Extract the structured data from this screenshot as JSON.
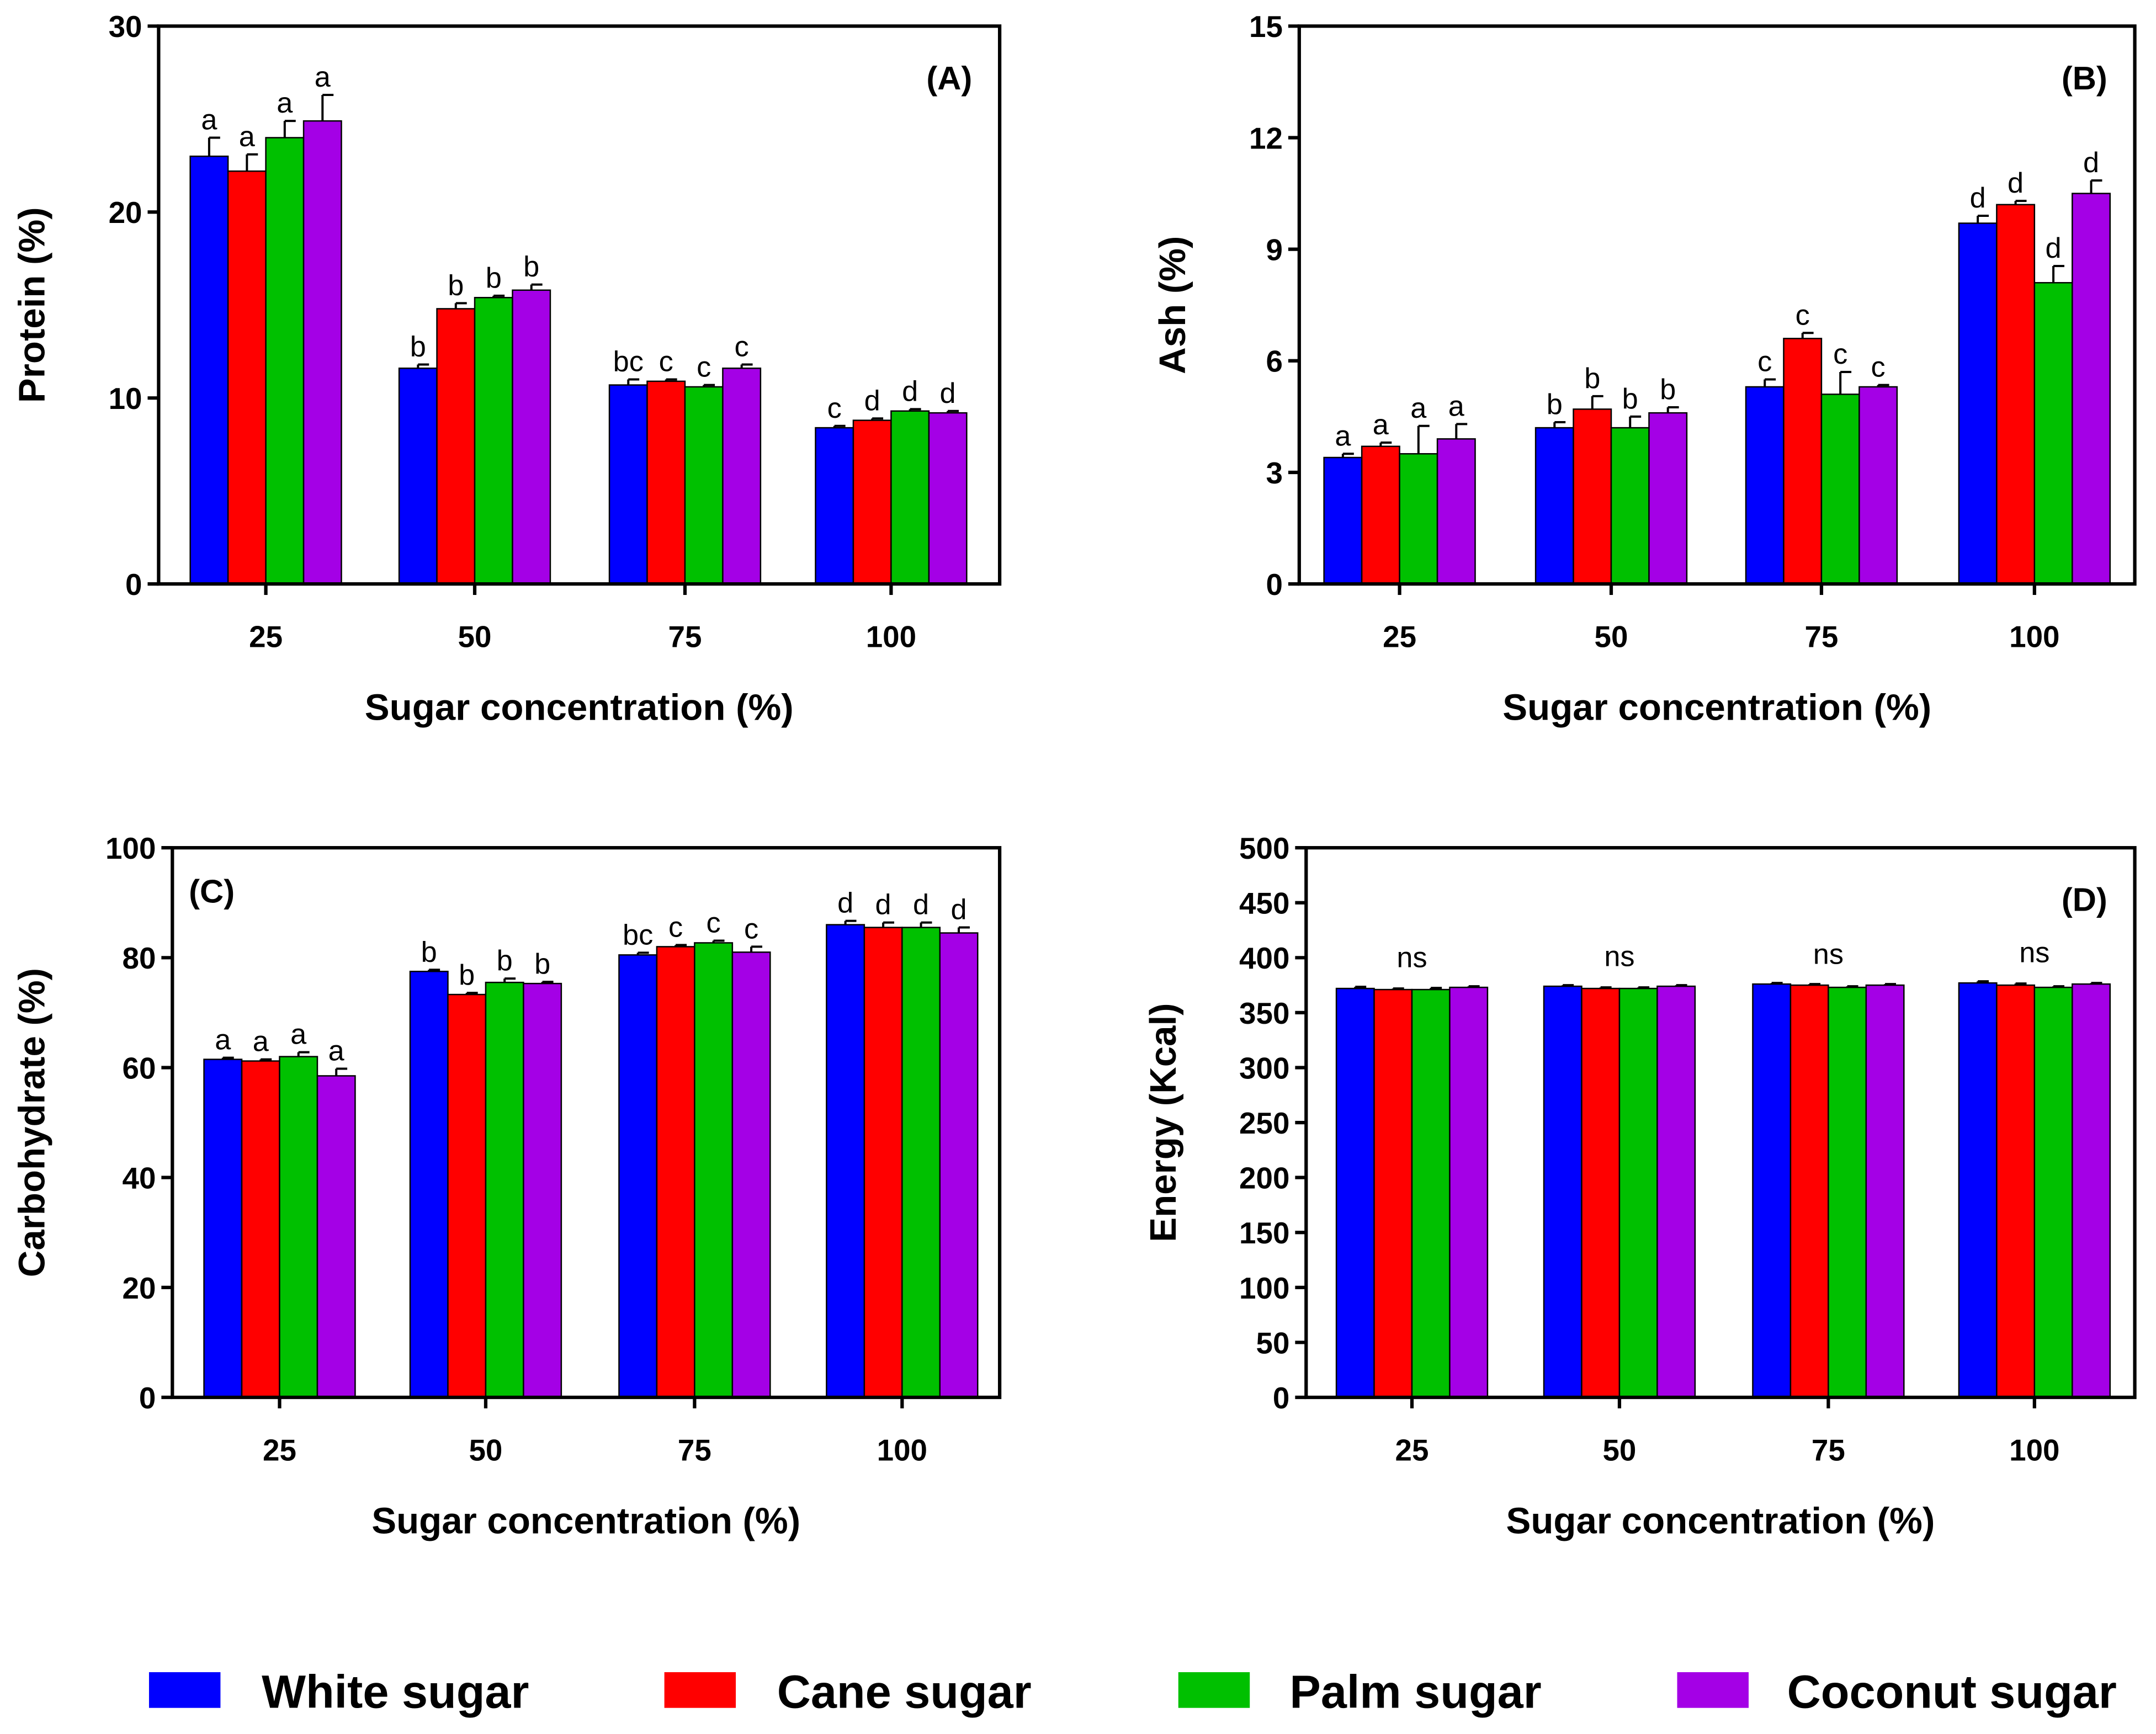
{
  "colors": {
    "White sugar": "#0000ff",
    "Cane sugar": "#ff0000",
    "Palm sugar": "#00c000",
    "Coconut sugar": "#a400e6"
  },
  "legend": [
    "White sugar",
    "Cane sugar",
    "Palm sugar",
    "Coconut sugar"
  ],
  "chart_data": [
    {
      "type": "bar",
      "panel_label": "(A)",
      "ylabel": "Protein (%)",
      "xlabel": "Sugar concentration (%)",
      "categories": [
        "25",
        "50",
        "75",
        "100"
      ],
      "ylim": [
        0,
        30
      ],
      "yticks": [
        0,
        10,
        20,
        30
      ],
      "series": [
        {
          "name": "White sugar",
          "values": [
            23.0,
            11.6,
            10.7,
            8.4
          ],
          "errors": [
            1.0,
            0.2,
            0.3,
            0.1
          ],
          "letters": [
            "a",
            "b",
            "bc",
            "c"
          ]
        },
        {
          "name": "Cane sugar",
          "values": [
            22.2,
            14.8,
            10.9,
            8.8
          ],
          "errors": [
            0.9,
            0.3,
            0.1,
            0.1
          ],
          "letters": [
            "a",
            "b",
            "c",
            "d"
          ]
        },
        {
          "name": "Palm sugar",
          "values": [
            24.0,
            15.4,
            10.6,
            9.3
          ],
          "errors": [
            0.9,
            0.1,
            0.1,
            0.1
          ],
          "letters": [
            "a",
            "b",
            "c",
            "d"
          ]
        },
        {
          "name": "Coconut sugar",
          "values": [
            24.9,
            15.8,
            11.6,
            9.2
          ],
          "errors": [
            1.4,
            0.3,
            0.2,
            0.1
          ],
          "letters": [
            "a",
            "b",
            "c",
            "d"
          ]
        }
      ]
    },
    {
      "type": "bar",
      "panel_label": "(B)",
      "ylabel": "Ash (%)",
      "xlabel": "Sugar concentration (%)",
      "categories": [
        "25",
        "50",
        "75",
        "100"
      ],
      "ylim": [
        0,
        15
      ],
      "yticks": [
        0,
        3,
        6,
        9,
        12,
        15
      ],
      "series": [
        {
          "name": "White sugar",
          "values": [
            3.4,
            4.2,
            5.3,
            9.7
          ],
          "errors": [
            0.1,
            0.15,
            0.2,
            0.2
          ],
          "letters": [
            "a",
            "b",
            "c",
            "d"
          ]
        },
        {
          "name": "Cane sugar",
          "values": [
            3.7,
            4.7,
            6.6,
            10.2
          ],
          "errors": [
            0.1,
            0.35,
            0.15,
            0.1
          ],
          "letters": [
            "a",
            "b",
            "c",
            "d"
          ]
        },
        {
          "name": "Palm sugar",
          "values": [
            3.5,
            4.2,
            5.1,
            8.1
          ],
          "errors": [
            0.75,
            0.3,
            0.6,
            0.45
          ],
          "letters": [
            "a",
            "b",
            "c",
            "d"
          ]
        },
        {
          "name": "Coconut sugar",
          "values": [
            3.9,
            4.6,
            5.3,
            10.5
          ],
          "errors": [
            0.4,
            0.15,
            0.05,
            0.35
          ],
          "letters": [
            "a",
            "b",
            "c",
            "d"
          ]
        }
      ]
    },
    {
      "type": "bar",
      "panel_label": "(C)",
      "ylabel": "Carbohydrate (%)",
      "xlabel": "Sugar concentration (%)",
      "categories": [
        "25",
        "50",
        "75",
        "100"
      ],
      "ylim": [
        0,
        100
      ],
      "yticks": [
        0,
        20,
        40,
        60,
        80,
        100
      ],
      "series": [
        {
          "name": "White sugar",
          "values": [
            61.5,
            77.5,
            80.5,
            86.0
          ],
          "errors": [
            0.3,
            0.3,
            0.4,
            0.7
          ],
          "letters": [
            "a",
            "b",
            "bc",
            "d"
          ]
        },
        {
          "name": "Cane sugar",
          "values": [
            61.2,
            73.3,
            82.0,
            85.5
          ],
          "errors": [
            0.3,
            0.3,
            0.3,
            0.9
          ],
          "letters": [
            "a",
            "b",
            "c",
            "d"
          ]
        },
        {
          "name": "Palm sugar",
          "values": [
            62.0,
            75.5,
            82.7,
            85.5
          ],
          "errors": [
            0.8,
            0.7,
            0.4,
            0.9
          ],
          "letters": [
            "a",
            "b",
            "c",
            "d"
          ]
        },
        {
          "name": "Coconut sugar",
          "values": [
            58.5,
            75.3,
            81.0,
            84.5
          ],
          "errors": [
            1.3,
            0.3,
            1.0,
            1.0
          ],
          "letters": [
            "a",
            "b",
            "c",
            "d"
          ]
        }
      ]
    },
    {
      "type": "bar",
      "panel_label": "(D)",
      "ylabel": "Energy (Kcal)",
      "xlabel": "Sugar concentration (%)",
      "categories": [
        "25",
        "50",
        "75",
        "100"
      ],
      "ylim": [
        0,
        500
      ],
      "yticks": [
        0,
        50,
        100,
        150,
        200,
        250,
        300,
        350,
        400,
        450,
        500
      ],
      "group_annotations": [
        "ns",
        "ns",
        "ns",
        "ns"
      ],
      "series": [
        {
          "name": "White sugar",
          "values": [
            372,
            374,
            376,
            377
          ],
          "errors": [
            1.5,
            1,
            1,
            1.5
          ]
        },
        {
          "name": "Cane sugar",
          "values": [
            371,
            372,
            375,
            375
          ],
          "errors": [
            1,
            1,
            1,
            1.5
          ]
        },
        {
          "name": "Palm sugar",
          "values": [
            371,
            372,
            373,
            373
          ],
          "errors": [
            1.5,
            1,
            1,
            1
          ]
        },
        {
          "name": "Coconut sugar",
          "values": [
            373,
            374,
            375,
            376
          ],
          "errors": [
            1,
            1,
            1,
            1
          ]
        }
      ]
    }
  ]
}
